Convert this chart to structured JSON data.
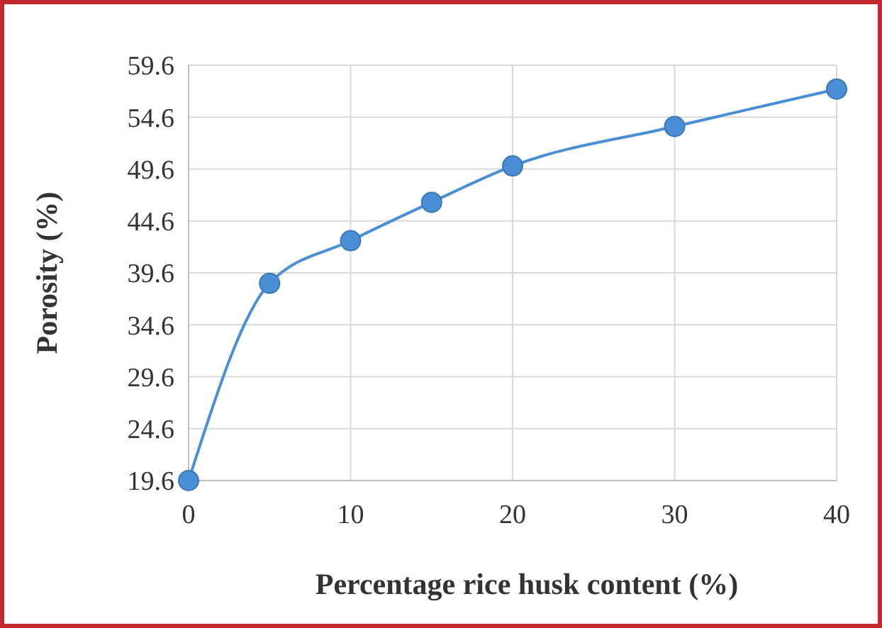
{
  "chart_data": {
    "type": "line",
    "xlabel": "Percentage rice husk content (%)",
    "ylabel": "Porosity (%)",
    "x": [
      0,
      5,
      10,
      15,
      20,
      30,
      40
    ],
    "series": [
      {
        "color": "#4a8fd6",
        "values": [
          19.6,
          38.6,
          42.7,
          46.4,
          49.9,
          53.7,
          57.3
        ]
      }
    ],
    "xlim": [
      0,
      40
    ],
    "xticks": [
      0,
      10,
      20,
      30,
      40
    ],
    "ylim": [
      19.6,
      59.6
    ],
    "yticks": [
      19.6,
      24.6,
      29.6,
      34.6,
      39.6,
      44.6,
      49.6,
      54.6,
      59.6
    ],
    "grid": true,
    "marker": "circle",
    "line_style": "solid"
  }
}
